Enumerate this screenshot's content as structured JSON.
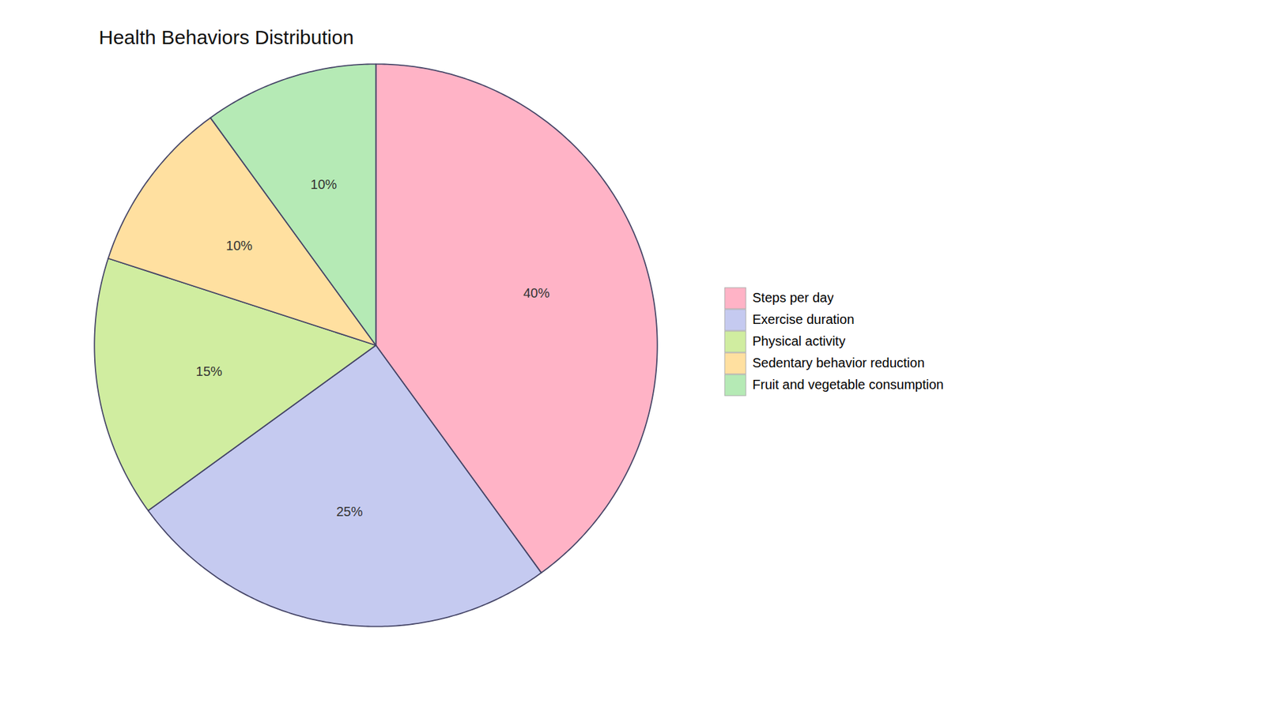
{
  "chart_data": {
    "type": "pie",
    "title": "Health Behaviors Distribution",
    "categories": [
      "Steps per day",
      "Exercise duration",
      "Physical activity",
      "Sedentary behavior reduction",
      "Fruit and vegetable consumption"
    ],
    "values": [
      40,
      25,
      15,
      10,
      10
    ],
    "value_labels": [
      "40%",
      "25%",
      "15%",
      "10%",
      "10%"
    ],
    "colors": [
      "#FFB3C6",
      "#C5CAF0",
      "#D0EDA0",
      "#FFE0A0",
      "#B5EAB5"
    ],
    "data_labels": true,
    "legend": "right"
  }
}
